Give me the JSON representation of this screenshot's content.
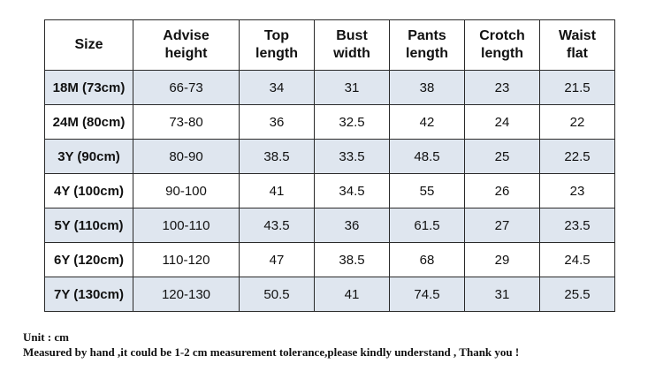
{
  "table": {
    "headers": [
      "Size",
      "Advise\nheight",
      "Top\nlength",
      "Bust\nwidth",
      "Pants\nlength",
      "Crotch\nlength",
      "Waist\nflat"
    ],
    "rows": [
      [
        "18M (73cm)",
        "66-73",
        "34",
        "31",
        "38",
        "23",
        "21.5"
      ],
      [
        "24M (80cm)",
        "73-80",
        "36",
        "32.5",
        "42",
        "24",
        "22"
      ],
      [
        "3Y (90cm)",
        "80-90",
        "38.5",
        "33.5",
        "48.5",
        "25",
        "22.5"
      ],
      [
        "4Y (100cm)",
        "90-100",
        "41",
        "34.5",
        "55",
        "26",
        "23"
      ],
      [
        "5Y (110cm)",
        "100-110",
        "43.5",
        "36",
        "61.5",
        "27",
        "23.5"
      ],
      [
        "6Y (120cm)",
        "110-120",
        "47",
        "38.5",
        "68",
        "29",
        "24.5"
      ],
      [
        "7Y (130cm)",
        "120-130",
        "50.5",
        "41",
        "74.5",
        "31",
        "25.5"
      ]
    ]
  },
  "notes": {
    "unit": "Unit : cm",
    "tolerance": "Measured by hand ,it could be 1-2 cm measurement tolerance,please kindly understand , Thank you !"
  },
  "colors": {
    "shaded_row": "#dfe6ef",
    "border": "#2a2a2a"
  }
}
